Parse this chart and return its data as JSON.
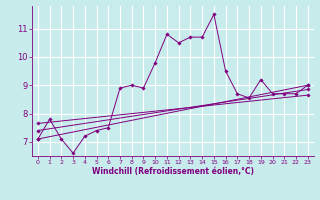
{
  "title": "",
  "xlabel": "Windchill (Refroidissement éolien,°C)",
  "ylabel": "",
  "background_color": "#c8ecec",
  "grid_color": "#ffffff",
  "line_color": "#800080",
  "xlim": [
    -0.5,
    23.5
  ],
  "ylim": [
    6.5,
    11.8
  ],
  "xticks": [
    0,
    1,
    2,
    3,
    4,
    5,
    6,
    7,
    8,
    9,
    10,
    11,
    12,
    13,
    14,
    15,
    16,
    17,
    18,
    19,
    20,
    21,
    22,
    23
  ],
  "yticks": [
    7,
    8,
    9,
    10,
    11
  ],
  "series1_x": [
    0,
    1,
    2,
    3,
    4,
    5,
    6,
    7,
    8,
    9,
    10,
    11,
    12,
    13,
    14,
    15,
    16,
    17,
    18,
    19,
    20,
    21,
    22,
    23
  ],
  "series1_y": [
    7.1,
    7.8,
    7.1,
    6.6,
    7.2,
    7.4,
    7.5,
    8.9,
    9.0,
    8.9,
    9.8,
    10.8,
    10.5,
    10.7,
    10.7,
    11.5,
    9.5,
    8.7,
    8.55,
    9.2,
    8.7,
    8.7,
    8.7,
    9.0
  ],
  "series2_x": [
    0,
    23
  ],
  "series2_y": [
    7.1,
    9.0
  ],
  "series3_x": [
    0,
    23
  ],
  "series3_y": [
    7.4,
    8.85
  ],
  "series4_x": [
    0,
    23
  ],
  "series4_y": [
    7.65,
    8.65
  ]
}
